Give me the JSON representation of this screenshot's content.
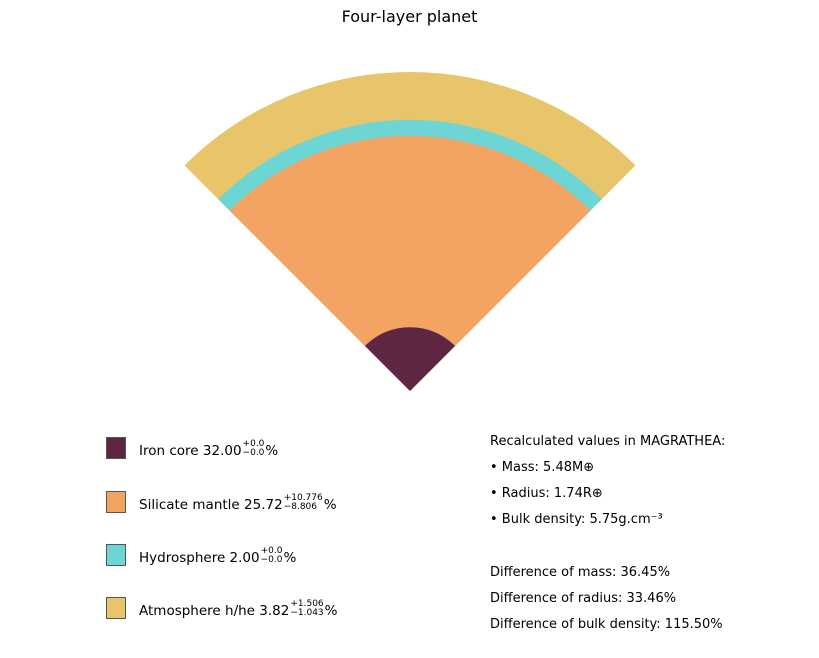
{
  "title": "Four-layer planet",
  "layers": [
    {
      "name": "Iron core",
      "value": "32.00",
      "plus": "+0.0",
      "minus": "−0.0",
      "unit": "%",
      "color": "#5e2642",
      "fraction": 0.2
    },
    {
      "name": "Silicate mantle",
      "value": "25.72",
      "plus": "+10.776",
      "minus": "−8.806",
      "unit": "%",
      "color": "#f4a462",
      "fraction": 0.6
    },
    {
      "name": "Hydrosphere",
      "value": "2.00",
      "plus": "+0.0",
      "minus": "−0.0",
      "unit": "%",
      "color": "#6dd6d5",
      "fraction": 0.05
    },
    {
      "name": "Atmosphere h/he",
      "value": "3.82",
      "plus": "+1.506",
      "minus": "−1.043",
      "unit": "%",
      "color": "#e8c56b",
      "fraction": 0.15
    }
  ],
  "recalculated": {
    "heading": "Recalculated values in MAGRATHEA:",
    "mass": "• Mass: 5.48M⊕",
    "radius": "• Radius: 1.74R⊕",
    "density": "• Bulk density: 5.75g.cm⁻³"
  },
  "differences": {
    "mass": "Difference of mass: 36.45%",
    "radius": "Difference of radius: 33.46%",
    "density": "Difference of bulk density: 115.50%"
  }
}
